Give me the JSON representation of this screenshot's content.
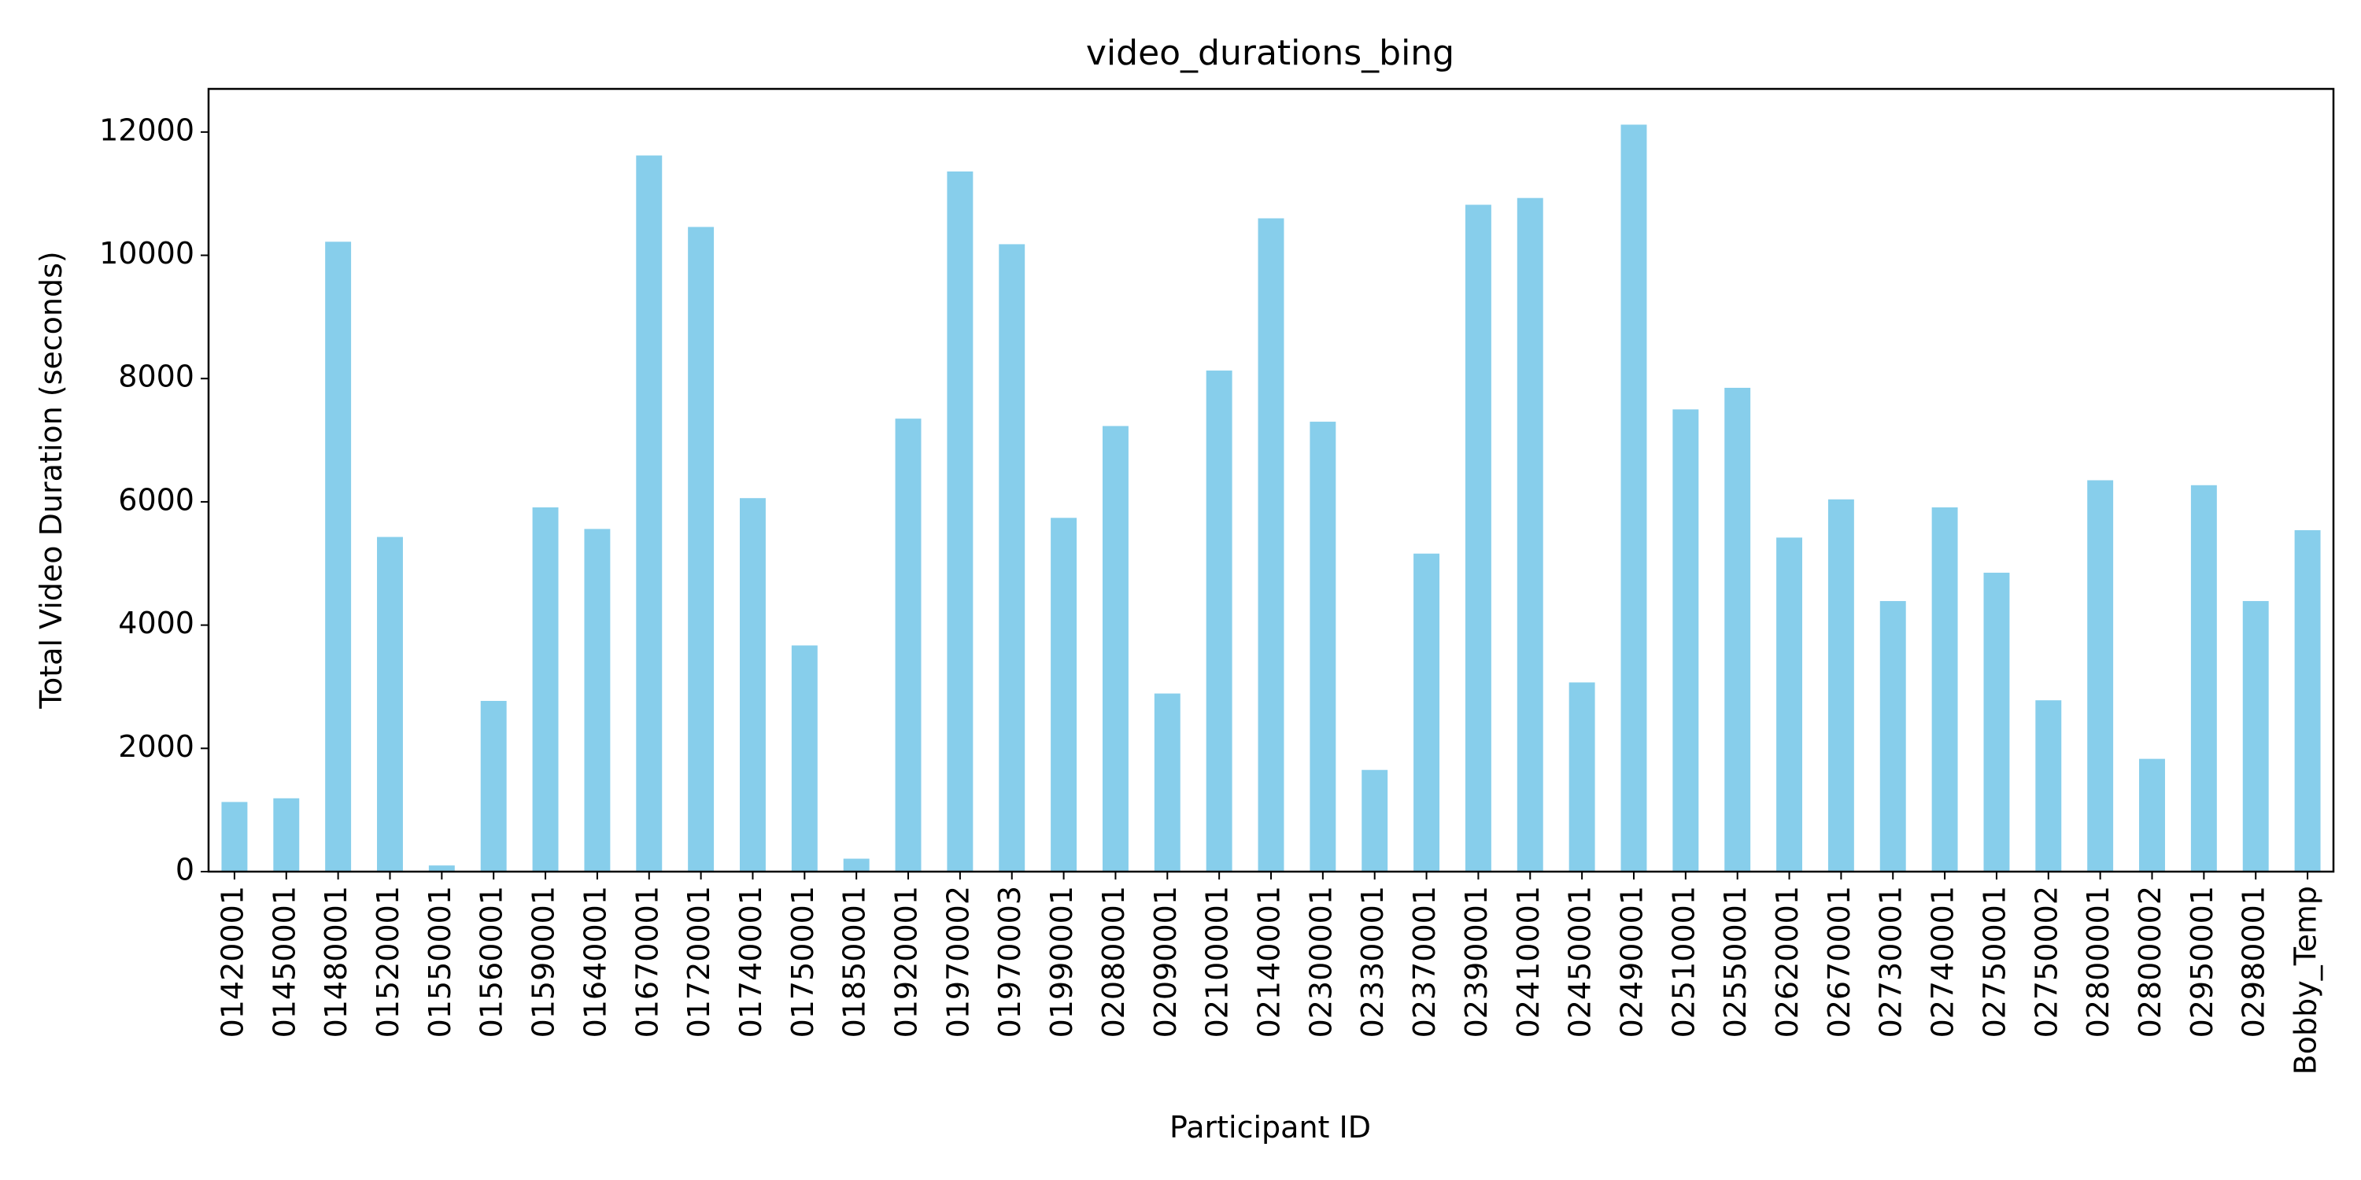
{
  "chart_data": {
    "type": "bar",
    "title": "video_durations_bing",
    "xlabel": "Participant ID",
    "ylabel": "Total Video Duration (seconds)",
    "ylim": [
      0,
      12700
    ],
    "yticks": [
      0,
      2000,
      4000,
      6000,
      8000,
      10000,
      12000
    ],
    "grid": false,
    "bar_color": "#87CEEB",
    "categories": [
      "01420001",
      "01450001",
      "01480001",
      "01520001",
      "01550001",
      "01560001",
      "01590001",
      "01640001",
      "01670001",
      "01720001",
      "01740001",
      "01750001",
      "01850001",
      "01920001",
      "01970002",
      "01970003",
      "01990001",
      "02080001",
      "02090001",
      "02100001",
      "02140001",
      "02300001",
      "02330001",
      "02370001",
      "02390001",
      "02410001",
      "02450001",
      "02490001",
      "02510001",
      "02550001",
      "02620001",
      "02670001",
      "02730001",
      "02740001",
      "02750001",
      "02750002",
      "02800001",
      "02800002",
      "02950001",
      "02980001",
      "Bobby_Temp"
    ],
    "values": [
      1130,
      1190,
      10220,
      5430,
      100,
      2770,
      5910,
      5560,
      11620,
      10460,
      6060,
      3670,
      210,
      7350,
      11360,
      10180,
      5740,
      7230,
      2890,
      8130,
      10600,
      7300,
      1650,
      5160,
      10820,
      10930,
      3070,
      12120,
      7500,
      7850,
      5420,
      6040,
      4390,
      5910,
      4850,
      2780,
      6350,
      1830,
      6270,
      4390,
      5540
    ]
  }
}
